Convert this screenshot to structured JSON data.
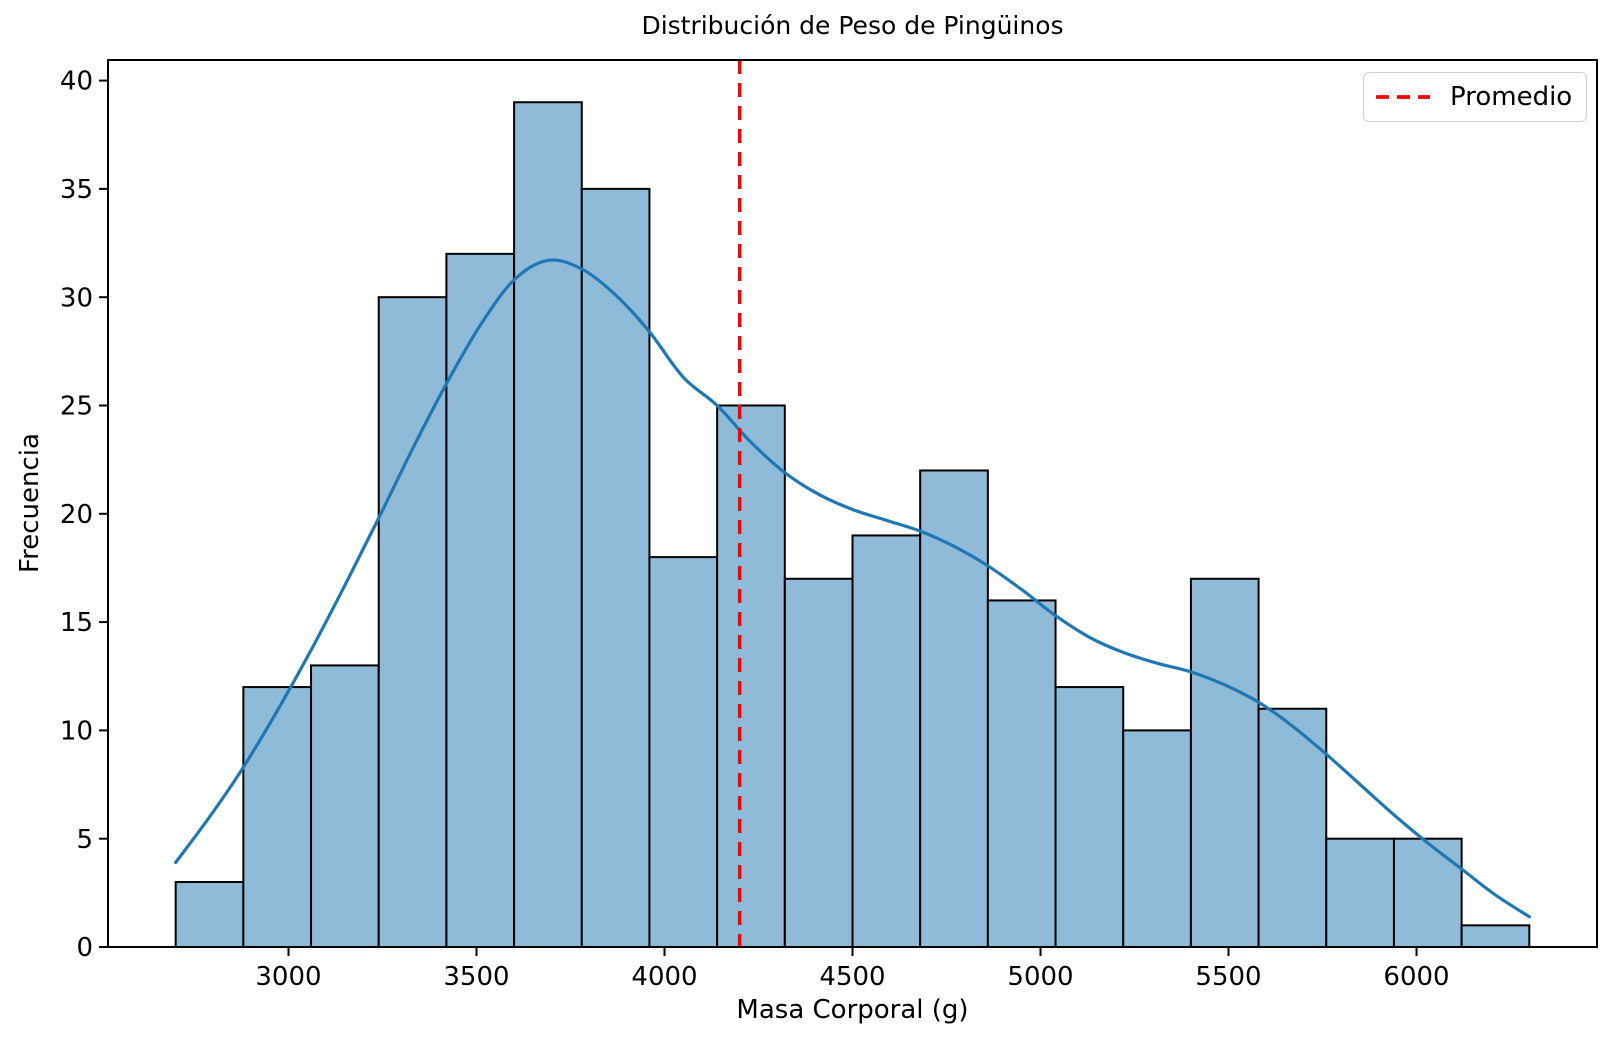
{
  "title": "Distribución de Peso de Pingüinos",
  "chart_data": {
    "type": "bar",
    "subtype": "histogram-with-kde",
    "title": "Distribución de Peso de Pingüinos",
    "xlabel": "Masa Corporal (g)",
    "ylabel": "Frecuencia",
    "bin_edges": [
      2700,
      2880,
      3060,
      3240,
      3420,
      3600,
      3780,
      3960,
      4140,
      4320,
      4500,
      4680,
      4860,
      5040,
      5220,
      5400,
      5580,
      5760,
      5940,
      6120,
      6300
    ],
    "counts": [
      3,
      12,
      13,
      30,
      32,
      39,
      35,
      18,
      25,
      17,
      19,
      22,
      16,
      12,
      10,
      17,
      11,
      5,
      5,
      1
    ],
    "total_count": 342,
    "kde_line": {
      "x": [
        2700,
        2790,
        2880,
        2970,
        3060,
        3150,
        3240,
        3330,
        3420,
        3510,
        3600,
        3690,
        3780,
        3870,
        3960,
        4050,
        4140,
        4230,
        4320,
        4410,
        4500,
        4590,
        4680,
        4770,
        4860,
        4950,
        5040,
        5130,
        5220,
        5310,
        5400,
        5490,
        5580,
        5670,
        5760,
        5850,
        5940,
        6030,
        6120,
        6210,
        6300
      ],
      "y": [
        3.9,
        6.0,
        8.3,
        10.9,
        13.7,
        16.7,
        19.8,
        23.0,
        26.0,
        28.7,
        30.8,
        31.7,
        31.3,
        30.1,
        28.4,
        26.3,
        25.0,
        23.3,
        21.9,
        20.9,
        20.2,
        19.7,
        19.2,
        18.5,
        17.6,
        16.5,
        15.3,
        14.3,
        13.6,
        13.1,
        12.7,
        12.1,
        11.3,
        10.2,
        8.9,
        7.5,
        6.1,
        4.8,
        3.6,
        2.4,
        1.4
      ]
    },
    "mean_line": {
      "value": 4200,
      "label": "Promedio",
      "style": "dashed"
    },
    "xlim": [
      2520,
      6480
    ],
    "ylim": [
      0,
      40.95
    ],
    "xticks": [
      3000,
      3500,
      4000,
      4500,
      5000,
      5500,
      6000
    ],
    "yticks": [
      0,
      5,
      10,
      15,
      20,
      25,
      30,
      35,
      40
    ],
    "grid": false,
    "legend": {
      "label": "Promedio",
      "position": "upper right"
    },
    "colors": {
      "bar_fill": "#8fbbd9",
      "bar_edge": "#000000",
      "kde_line": "#1f77b4",
      "mean_line": "#ff0000",
      "text": "#000000",
      "spine": "#000000",
      "legend_border": "#d0d0d0",
      "background": "#ffffff"
    }
  }
}
